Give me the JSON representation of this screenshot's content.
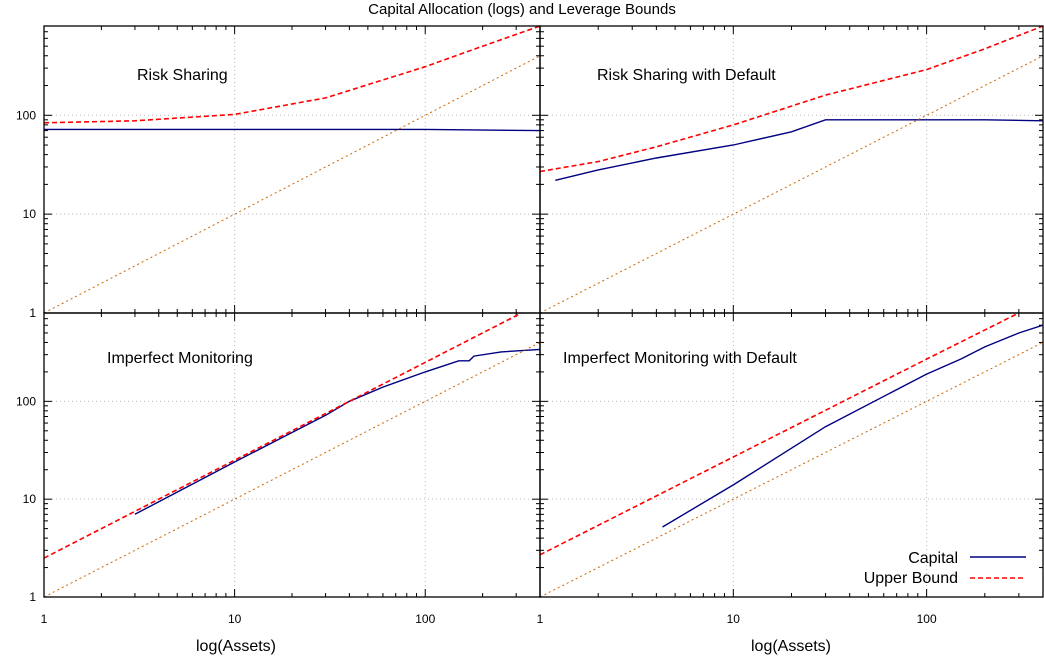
{
  "title": "Capital Allocation (logs) and Leverage Bounds",
  "xlabel": "log(Assets)",
  "legend": {
    "capital": "Capital",
    "upper_bound": "Upper Bound",
    "placement": "bottom-right"
  },
  "colors": {
    "capital": "#000080",
    "upper_bound": "#ff0000",
    "reference": "#cc6600",
    "grid": "#bbbbbb"
  },
  "chart_data": [
    {
      "type": "line",
      "panel_title": "Risk Sharing",
      "xscale": "log",
      "yscale": "log",
      "xlim": [
        1,
        400
      ],
      "ylim": [
        1,
        800
      ],
      "xticks": [
        1,
        10,
        100
      ],
      "xticklabels": [
        "",
        "",
        ""
      ],
      "yticks": [
        1,
        10,
        100
      ],
      "yticklabels": [
        "1",
        "10",
        "100"
      ],
      "grid": true,
      "series": [
        {
          "name": "Capital",
          "x": [
            1,
            10,
            100,
            400
          ],
          "y": [
            72,
            72,
            72,
            70
          ]
        },
        {
          "name": "Upper Bound",
          "x": [
            1,
            3,
            10,
            30,
            100,
            200,
            400
          ],
          "y": [
            84,
            88,
            102,
            150,
            310,
            500,
            800
          ]
        },
        {
          "x": [
            1,
            400
          ],
          "y": [
            1,
            400
          ]
        }
      ]
    },
    {
      "type": "line",
      "panel_title": "Risk Sharing with Default",
      "xscale": "log",
      "yscale": "log",
      "xlim": [
        1,
        400
      ],
      "ylim": [
        1,
        800
      ],
      "xticks": [
        1,
        10,
        100
      ],
      "xticklabels": [
        "",
        "",
        ""
      ],
      "yticks": [
        1,
        10,
        100
      ],
      "yticklabels": [
        "",
        "",
        ""
      ],
      "grid": true,
      "series": [
        {
          "name": "Capital",
          "x": [
            1.2,
            2,
            4,
            10,
            20,
            30,
            100,
            200,
            400
          ],
          "y": [
            22,
            28,
            37,
            50,
            68,
            90,
            90,
            90,
            88
          ]
        },
        {
          "name": "Upper Bound",
          "x": [
            1,
            2,
            4,
            10,
            30,
            100,
            200,
            400
          ],
          "y": [
            27,
            34,
            48,
            80,
            160,
            290,
            470,
            800
          ]
        },
        {
          "x": [
            1,
            400
          ],
          "y": [
            1,
            400
          ]
        }
      ]
    },
    {
      "type": "line",
      "panel_title": "Imperfect Monitoring",
      "xscale": "log",
      "yscale": "log",
      "xlim": [
        1,
        400
      ],
      "ylim": [
        1,
        800
      ],
      "xticks": [
        1,
        10,
        100
      ],
      "xticklabels": [
        "1",
        "10",
        "100"
      ],
      "yticks": [
        1,
        10,
        100
      ],
      "yticklabels": [
        "1",
        "10",
        "100"
      ],
      "grid": true,
      "series": [
        {
          "name": "Capital",
          "x": [
            3,
            10,
            20,
            30,
            40,
            60,
            100,
            150,
            170,
            180,
            250,
            400
          ],
          "y": [
            7,
            24,
            48,
            72,
            100,
            140,
            200,
            260,
            260,
            290,
            320,
            340
          ]
        },
        {
          "name": "Upper Bound",
          "x": [
            1,
            10,
            100,
            320
          ],
          "y": [
            2.5,
            25,
            250,
            800
          ]
        },
        {
          "x": [
            1,
            400
          ],
          "y": [
            1,
            400
          ]
        }
      ]
    },
    {
      "type": "line",
      "panel_title": "Imperfect Monitoring with Default",
      "xscale": "log",
      "yscale": "log",
      "xlim": [
        1,
        400
      ],
      "ylim": [
        1,
        800
      ],
      "xticks": [
        1,
        10,
        100
      ],
      "xticklabels": [
        "1",
        "10",
        "100"
      ],
      "yticks": [
        1,
        10,
        100
      ],
      "yticklabels": [
        "",
        "",
        ""
      ],
      "grid": true,
      "series": [
        {
          "name": "Capital",
          "x": [
            4.3,
            10,
            30,
            100,
            150,
            200,
            300,
            400
          ],
          "y": [
            5.2,
            14,
            55,
            190,
            270,
            360,
            500,
            600
          ]
        },
        {
          "name": "Upper Bound",
          "x": [
            1,
            10,
            100,
            300
          ],
          "y": [
            2.7,
            27,
            270,
            800
          ]
        },
        {
          "x": [
            1,
            400
          ],
          "y": [
            1,
            400
          ]
        }
      ]
    }
  ]
}
